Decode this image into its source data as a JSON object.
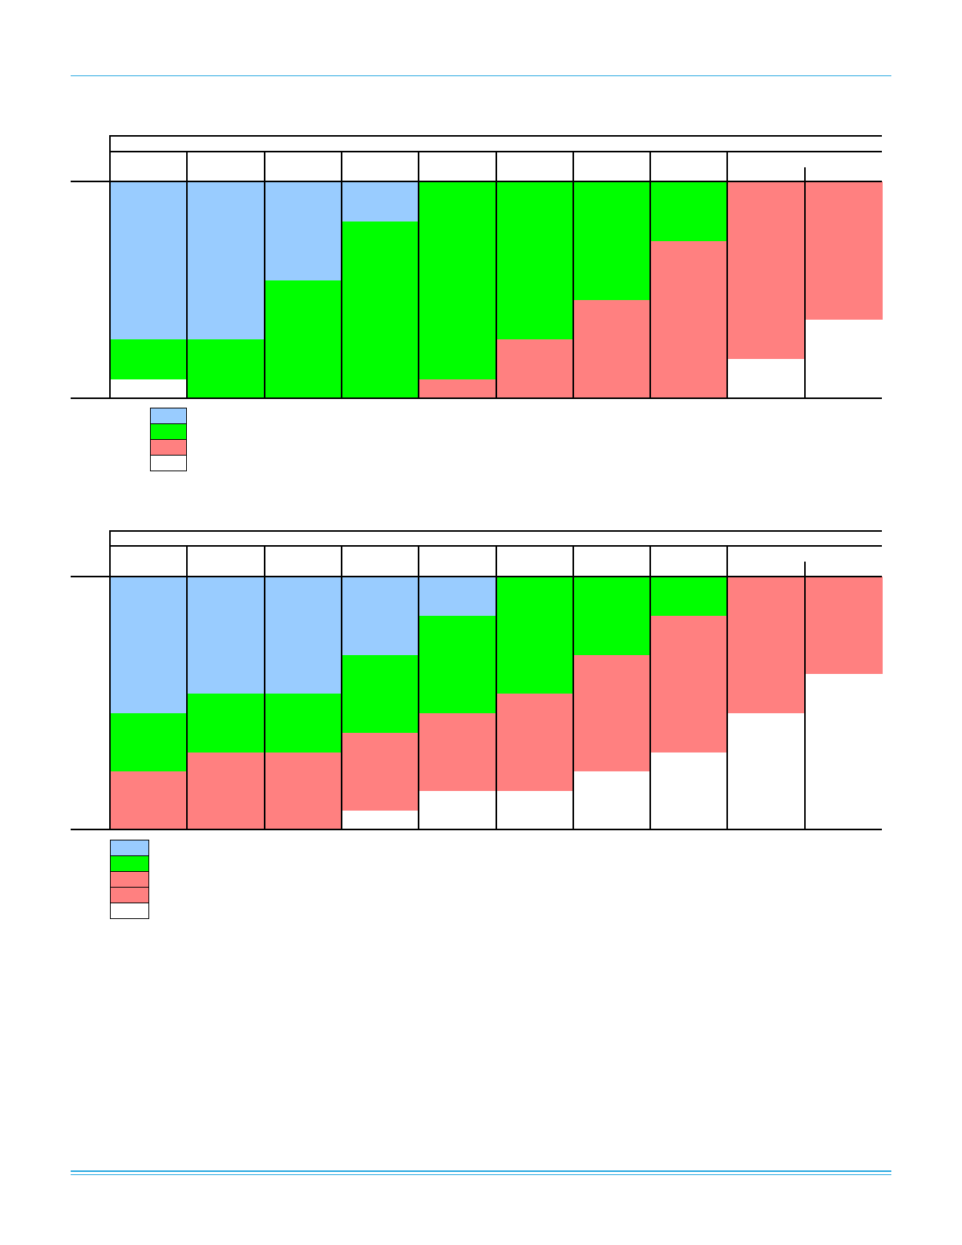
{
  "colors": {
    "rule": "#29a9e1",
    "blue": "#99ccff",
    "green": "#00ff00",
    "red": "#ff8080",
    "white": "#ffffff"
  },
  "chart_data": [
    {
      "type": "bar",
      "title": "",
      "categories": [
        "",
        "",
        "",
        "",
        "",
        "",
        "",
        "",
        "",
        ""
      ],
      "units_per_column": 11,
      "stacks": [
        [
          "white",
          "green",
          "green",
          "blue",
          "blue",
          "blue",
          "blue",
          "blue",
          "blue",
          "blue",
          "blue"
        ],
        [
          "green",
          "green",
          "green",
          "blue",
          "blue",
          "blue",
          "blue",
          "blue",
          "blue",
          "blue",
          "blue"
        ],
        [
          "green",
          "green",
          "green",
          "green",
          "green",
          "green",
          "blue",
          "blue",
          "blue",
          "blue",
          "blue"
        ],
        [
          "green",
          "green",
          "green",
          "green",
          "green",
          "green",
          "green",
          "green",
          "green",
          "blue",
          "blue"
        ],
        [
          "red",
          "green",
          "green",
          "green",
          "green",
          "green",
          "green",
          "green",
          "green",
          "green",
          "green"
        ],
        [
          "red",
          "red",
          "red",
          "green",
          "green",
          "green",
          "green",
          "green",
          "green",
          "green",
          "green"
        ],
        [
          "red",
          "red",
          "red",
          "red",
          "red",
          "green",
          "green",
          "green",
          "green",
          "green",
          "green"
        ],
        [
          "red",
          "red",
          "red",
          "red",
          "red",
          "red",
          "red",
          "red",
          "green",
          "green",
          "green"
        ],
        [
          "white",
          "white",
          "red",
          "red",
          "red",
          "red",
          "red",
          "red",
          "red",
          "red",
          "red"
        ],
        [
          "white",
          "white",
          "white",
          "white",
          "red",
          "red",
          "red",
          "red",
          "red",
          "red",
          "red"
        ]
      ],
      "legend": [
        "blue",
        "green",
        "red",
        "white"
      ]
    },
    {
      "type": "bar",
      "title": "",
      "categories": [
        "",
        "",
        "",
        "",
        "",
        "",
        "",
        "",
        "",
        ""
      ],
      "units_per_column": 13,
      "stacks": [
        [
          "red",
          "red",
          "red",
          "green",
          "green",
          "green",
          "blue",
          "blue",
          "blue",
          "blue",
          "blue",
          "blue",
          "blue"
        ],
        [
          "red",
          "red",
          "red",
          "red",
          "green",
          "green",
          "green",
          "blue",
          "blue",
          "blue",
          "blue",
          "blue",
          "blue"
        ],
        [
          "red",
          "red",
          "red",
          "red",
          "green",
          "green",
          "green",
          "blue",
          "blue",
          "blue",
          "blue",
          "blue",
          "blue"
        ],
        [
          "white",
          "red",
          "red",
          "red",
          "red",
          "green",
          "green",
          "green",
          "green",
          "blue",
          "blue",
          "blue",
          "blue"
        ],
        [
          "white",
          "white",
          "red",
          "red",
          "red",
          "red",
          "green",
          "green",
          "green",
          "green",
          "green",
          "blue",
          "blue"
        ],
        [
          "white",
          "white",
          "red",
          "red",
          "red",
          "red",
          "red",
          "green",
          "green",
          "green",
          "green",
          "green",
          "green"
        ],
        [
          "white",
          "white",
          "white",
          "red",
          "red",
          "red",
          "red",
          "red",
          "red",
          "green",
          "green",
          "green",
          "green"
        ],
        [
          "white",
          "white",
          "white",
          "white",
          "red",
          "red",
          "red",
          "red",
          "red",
          "red",
          "red",
          "green",
          "green"
        ],
        [
          "white",
          "white",
          "white",
          "white",
          "white",
          "white",
          "red",
          "red",
          "red",
          "red",
          "red",
          "red",
          "red"
        ],
        [
          "white",
          "white",
          "white",
          "white",
          "white",
          "white",
          "white",
          "white",
          "red",
          "red",
          "red",
          "red",
          "red"
        ]
      ],
      "legend": [
        "blue",
        "green",
        "red",
        "red",
        "white"
      ]
    }
  ]
}
